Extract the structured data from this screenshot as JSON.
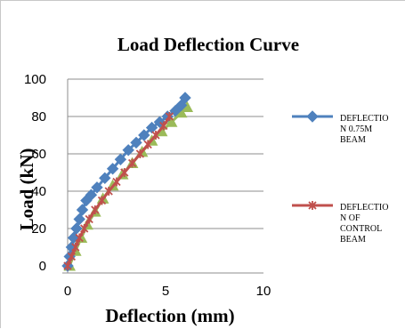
{
  "chart_data": {
    "type": "line",
    "title": "Load Deflection Curve",
    "xlabel": "Deflection (mm)",
    "ylabel": "Load (kN)",
    "xlim": [
      0,
      10
    ],
    "ylim": [
      0,
      100
    ],
    "xticks": [
      "0",
      "5",
      "10"
    ],
    "yticks": [
      "0",
      "20",
      "40",
      "60",
      "80",
      "100"
    ],
    "grid": "horizontal major gridlines",
    "legend_position": "right",
    "series": [
      {
        "name": "DEFLECTION 0.75M BEAM",
        "color": "#4f81bd",
        "marker": "diamond",
        "x": [
          0,
          0.1,
          0.2,
          0.3,
          0.45,
          0.6,
          0.75,
          0.95,
          1.2,
          1.5,
          1.9,
          2.3,
          2.7,
          3.1,
          3.5,
          3.9,
          4.3,
          4.7,
          5.1,
          5.5,
          5.8,
          6.0
        ],
        "y": [
          0,
          5,
          10,
          15,
          20,
          25,
          30,
          35,
          38,
          42,
          47,
          52,
          57,
          62,
          66,
          70,
          74,
          77,
          80,
          83,
          86,
          90
        ]
      },
      {
        "name": "DEFLECTION OF CONTROL BEAM",
        "color": "#c0504d",
        "marker": "x",
        "x": [
          0,
          0.2,
          0.4,
          0.6,
          0.85,
          1.1,
          1.4,
          1.75,
          2.1,
          2.5,
          2.9,
          3.3,
          3.7,
          4.1,
          4.5,
          4.9,
          5.2
        ],
        "y": [
          0,
          5,
          10,
          15,
          20,
          25,
          30,
          35,
          40,
          45,
          50,
          55,
          60,
          65,
          70,
          75,
          80
        ]
      },
      {
        "color": "#9bbb59",
        "marker": "triangle",
        "x": [
          0.1,
          0.4,
          0.7,
          1.0,
          1.4,
          1.8,
          2.3,
          2.8,
          3.3,
          3.8,
          4.3,
          4.8,
          5.3,
          5.8,
          6.1
        ],
        "y": [
          0,
          8,
          15,
          22,
          29,
          36,
          43,
          49,
          55,
          61,
          67,
          72,
          77,
          82,
          85
        ]
      }
    ]
  },
  "legend": [
    {
      "label_lines": [
        "DEFLECTIO",
        "N 0.75M",
        "BEAM"
      ],
      "color": "#4f81bd",
      "marker": "diamond"
    },
    {
      "label_lines": [
        "DEFLECTIO",
        "N OF",
        "CONTROL",
        "BEAM"
      ],
      "color": "#c0504d",
      "marker": "x"
    }
  ]
}
